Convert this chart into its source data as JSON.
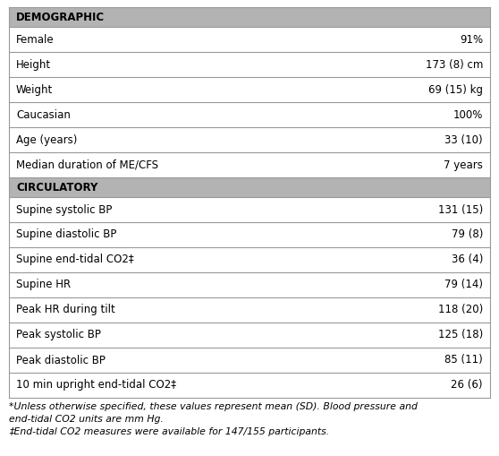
{
  "header1": "DEMOGRAPHIC",
  "header2": "CIRCULATORY",
  "demo_rows": [
    [
      "Female",
      "91%"
    ],
    [
      "Height",
      "173 (8) cm"
    ],
    [
      "Weight",
      "69 (15) kg"
    ],
    [
      "Caucasian",
      "100%"
    ],
    [
      "Age (years)",
      "33 (10)"
    ],
    [
      "Median duration of ME/CFS",
      "7 years"
    ]
  ],
  "circ_rows": [
    [
      "Supine systolic BP",
      "131 (15)"
    ],
    [
      "Supine diastolic BP",
      "79 (8)"
    ],
    [
      "Supine end-tidal CO2‡",
      "36 (4)"
    ],
    [
      "Supine HR",
      "79 (14)"
    ],
    [
      "Peak HR during tilt",
      "118 (20)"
    ],
    [
      "Peak systolic BP",
      "125 (18)"
    ],
    [
      "Peak diastolic BP",
      "85 (11)"
    ],
    [
      "10 min upright end-tidal CO2‡",
      "26 (6)"
    ]
  ],
  "footnote1_line1": "*Unless otherwise specified, these values represent mean (SD). Blood pressure and",
  "footnote1_line2": "end-tidal CO2 units are mm Hg.",
  "footnote2": "‡End-tidal CO2 measures were available for 147/155 participants.",
  "header_bg": "#b3b3b3",
  "row_bg_white": "#ffffff",
  "border_color": "#999999",
  "text_color": "#000000",
  "header_fontsize": 8.5,
  "row_fontsize": 8.5,
  "footnote_fontsize": 7.8
}
